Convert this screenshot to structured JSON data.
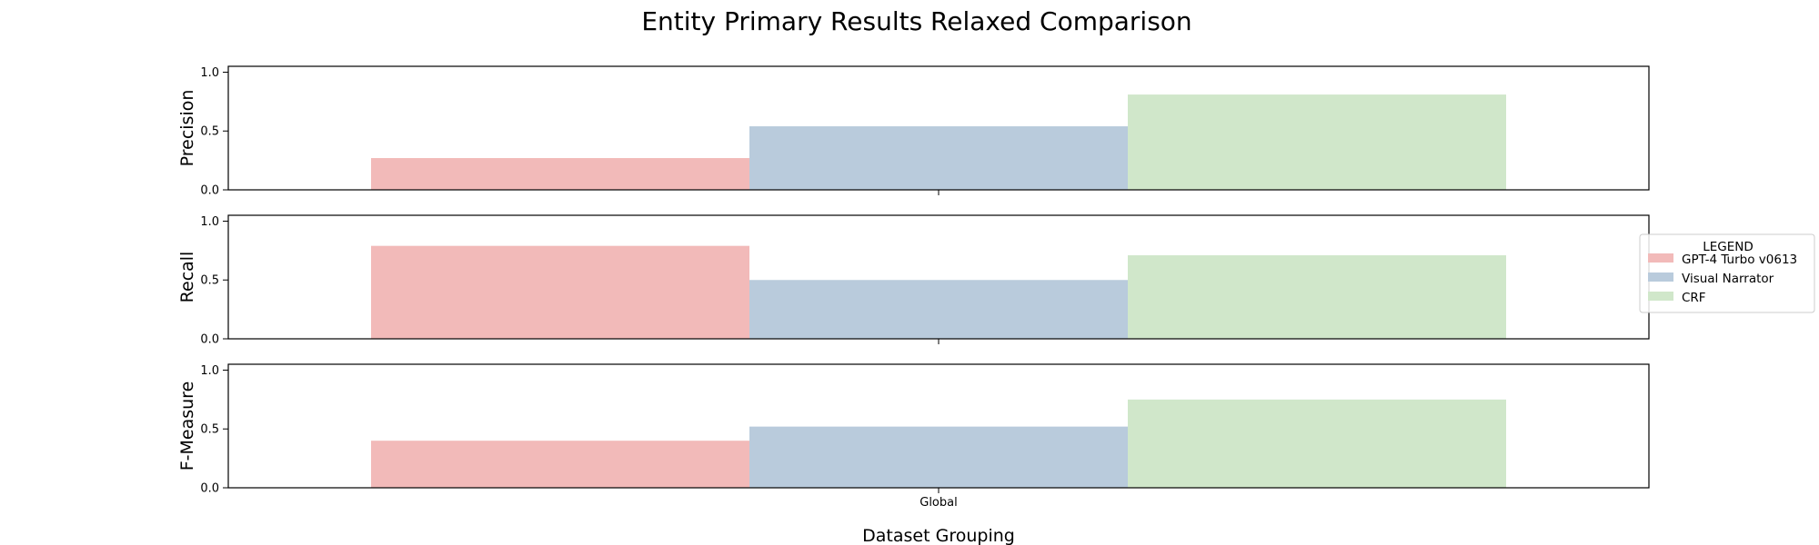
{
  "chart_data": {
    "type": "bar",
    "title": "Entity Primary Results Relaxed Comparison",
    "xlabel": "Dataset Grouping",
    "categories": [
      "Global"
    ],
    "legend": {
      "title": "LEGEND",
      "placement": "right"
    },
    "ylim": [
      0,
      1.05
    ],
    "yticks": [
      "0.0",
      "0.5",
      "1.0"
    ],
    "series": [
      {
        "name": "GPT-4 Turbo v0613",
        "color": "#f2bab9"
      },
      {
        "name": "Visual Narrator",
        "color": "#b9cbdc"
      },
      {
        "name": "CRF",
        "color": "#d0e7ca"
      }
    ],
    "panels": [
      {
        "ylabel": "Precision",
        "values": [
          0.27,
          0.54,
          0.81
        ]
      },
      {
        "ylabel": "Recall",
        "values": [
          0.79,
          0.5,
          0.71
        ]
      },
      {
        "ylabel": "F-Measure",
        "values": [
          0.4,
          0.52,
          0.75
        ]
      }
    ]
  }
}
